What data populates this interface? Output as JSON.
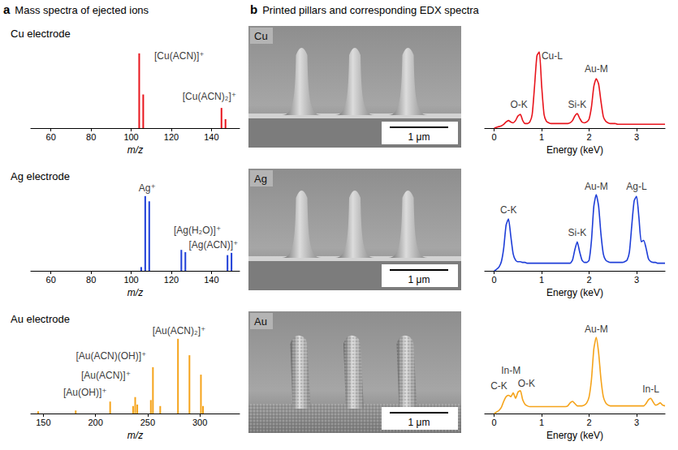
{
  "headings": [
    {
      "letter": "a",
      "title": "Mass spectra of ejected ions"
    },
    {
      "letter": "b",
      "title": "Printed pillars and corresponding EDX spectra"
    }
  ],
  "images": [
    {
      "label": "Cu",
      "scale_bar": "1 μm"
    },
    {
      "label": "Ag",
      "scale_bar": "1 μm"
    },
    {
      "label": "Au",
      "scale_bar": "1 μm"
    }
  ],
  "chart_data": [
    {
      "type": "bar",
      "title": "Cu electrode",
      "x_label": "m/z",
      "color": "#e8141c",
      "x": [
        104,
        106,
        145,
        147
      ],
      "values": [
        100,
        45,
        27,
        12
      ],
      "xlim": [
        50,
        154
      ],
      "xticks": [
        60,
        80,
        100,
        120,
        140
      ],
      "ylim": [
        0,
        115
      ],
      "tick_labels": "x",
      "grid": false,
      "annotations": [
        {
          "text": "[Cu(ACN)]⁺",
          "x": 124,
          "y": 90
        },
        {
          "text": "[Cu(ACN)₂]⁺",
          "x": 139,
          "y": 36
        }
      ]
    },
    {
      "type": "bar",
      "title": "Ag electrode",
      "x_label": "m/z",
      "color": "#1e3ed8",
      "x": [
        105,
        107,
        109,
        125,
        127,
        148,
        150
      ],
      "values": [
        5,
        100,
        93,
        28,
        25,
        21,
        24
      ],
      "xlim": [
        50,
        154
      ],
      "xticks": [
        60,
        80,
        100,
        120,
        140
      ],
      "ylim": [
        0,
        115
      ],
      "tick_labels": "x",
      "grid": false,
      "annotations": [
        {
          "text": "Ag⁺",
          "x": 108,
          "y": 104
        },
        {
          "text": "[Ag(H₂O)]⁺",
          "x": 133,
          "y": 48
        },
        {
          "text": "[Ag(ACN)]⁺",
          "x": 141,
          "y": 28
        }
      ]
    },
    {
      "type": "bar",
      "title": "Au electrode",
      "x_label": "m/z",
      "color": "#f5a31a",
      "x": [
        145,
        181,
        214,
        236,
        238,
        240,
        253,
        255,
        262,
        279,
        290,
        301,
        303
      ],
      "values": [
        3,
        4,
        16,
        10,
        22,
        12,
        18,
        62,
        10,
        100,
        78,
        52,
        10
      ],
      "xlim": [
        138,
        338
      ],
      "xticks": [
        150,
        200,
        250,
        300
      ],
      "ylim": [
        0,
        115
      ],
      "tick_labels": "x",
      "grid": false,
      "annotations": [
        {
          "text": "[Au(OH)]⁺",
          "x": 190,
          "y": 22
        },
        {
          "text": "[Au(ACN)]⁺",
          "x": 210,
          "y": 45
        },
        {
          "text": "[Au(ACN)(OH)]⁺",
          "x": 215,
          "y": 70
        },
        {
          "text": "[Au(ACN)₂]⁺",
          "x": 280,
          "y": 104
        }
      ]
    },
    {
      "type": "line",
      "x_label": "Energy (keV)",
      "color": "#e8141c",
      "x": [
        0,
        0.05,
        0.1,
        0.15,
        0.2,
        0.25,
        0.3,
        0.35,
        0.4,
        0.45,
        0.5,
        0.55,
        0.6,
        0.65,
        0.7,
        0.75,
        0.8,
        0.85,
        0.9,
        0.95,
        1,
        1.05,
        1.1,
        1.15,
        1.2,
        1.25,
        1.3,
        1.35,
        1.4,
        1.45,
        1.5,
        1.55,
        1.6,
        1.65,
        1.7,
        1.75,
        1.8,
        1.85,
        1.9,
        1.95,
        2,
        2.05,
        2.1,
        2.15,
        2.2,
        2.25,
        2.3,
        2.35,
        2.4,
        2.45,
        2.5,
        2.55,
        2.6,
        2.65,
        2.7,
        2.75,
        2.8,
        2.85,
        2.9,
        2.95,
        3,
        3.05,
        3.1,
        3.15,
        3.2,
        3.25,
        3.3,
        3.35,
        3.4,
        3.45,
        3.5,
        3.55,
        3.6
      ],
      "values": [
        0,
        1,
        2,
        3,
        5,
        8,
        10,
        8,
        7,
        10,
        16,
        18,
        10,
        6,
        6,
        8,
        18,
        55,
        95,
        100,
        55,
        18,
        9,
        7,
        6,
        6,
        6,
        6,
        6,
        6,
        6,
        6,
        7,
        10,
        16,
        19,
        13,
        8,
        7,
        8,
        12,
        28,
        55,
        65,
        58,
        35,
        15,
        9,
        7,
        6,
        6,
        6,
        5,
        5,
        5,
        5,
        5,
        5,
        5,
        5,
        5,
        5,
        5,
        5,
        5,
        5,
        5,
        5,
        5,
        5,
        5,
        5,
        5
      ],
      "xlim": [
        -0.2,
        3.6
      ],
      "xticks": [
        0,
        1,
        2,
        3
      ],
      "ylim": [
        0,
        115
      ],
      "tick_labels": "x",
      "grid": false,
      "annotations": [
        {
          "text": "O-K",
          "x": 0.52,
          "y": 24
        },
        {
          "text": "Cu-L",
          "x": 1.22,
          "y": 88
        },
        {
          "text": "Si-K",
          "x": 1.75,
          "y": 25
        },
        {
          "text": "Au-M",
          "x": 2.15,
          "y": 71
        }
      ]
    },
    {
      "type": "line",
      "x_label": "Energy (keV)",
      "color": "#1e3ed8",
      "x": [
        0,
        0.05,
        0.1,
        0.15,
        0.2,
        0.25,
        0.3,
        0.35,
        0.4,
        0.45,
        0.5,
        0.55,
        0.6,
        0.65,
        0.7,
        0.75,
        0.8,
        0.85,
        0.9,
        0.95,
        1,
        1.05,
        1.1,
        1.15,
        1.2,
        1.25,
        1.3,
        1.35,
        1.4,
        1.45,
        1.5,
        1.55,
        1.6,
        1.65,
        1.7,
        1.75,
        1.8,
        1.85,
        1.9,
        1.95,
        2,
        2.05,
        2.1,
        2.15,
        2.2,
        2.25,
        2.3,
        2.35,
        2.4,
        2.45,
        2.5,
        2.55,
        2.6,
        2.65,
        2.7,
        2.75,
        2.8,
        2.85,
        2.9,
        2.95,
        3,
        3.05,
        3.1,
        3.15,
        3.2,
        3.25,
        3.3,
        3.35,
        3.4,
        3.45,
        3.5,
        3.55,
        3.6
      ],
      "values": [
        0,
        2,
        5,
        12,
        30,
        60,
        68,
        45,
        22,
        14,
        12,
        12,
        11,
        11,
        10,
        10,
        10,
        10,
        10,
        10,
        10,
        10,
        10,
        10,
        10,
        10,
        10,
        10,
        10,
        10,
        10,
        10,
        10,
        14,
        28,
        38,
        25,
        14,
        11,
        11,
        14,
        40,
        85,
        100,
        85,
        48,
        22,
        14,
        12,
        11,
        11,
        11,
        11,
        11,
        11,
        12,
        14,
        25,
        60,
        92,
        98,
        70,
        38,
        40,
        30,
        16,
        12,
        11,
        11,
        10,
        10,
        10,
        10
      ],
      "xlim": [
        -0.2,
        3.6
      ],
      "xticks": [
        0,
        1,
        2,
        3
      ],
      "ylim": [
        0,
        115
      ],
      "tick_labels": "x",
      "grid": false,
      "annotations": [
        {
          "text": "C-K",
          "x": 0.3,
          "y": 74
        },
        {
          "text": "Si-K",
          "x": 1.75,
          "y": 44
        },
        {
          "text": "Au-M",
          "x": 2.15,
          "y": 104
        },
        {
          "text": "Ag-L",
          "x": 3.0,
          "y": 104
        }
      ]
    },
    {
      "type": "line",
      "x_label": "Energy (keV)",
      "color": "#f5a31a",
      "x": [
        0,
        0.05,
        0.1,
        0.15,
        0.2,
        0.25,
        0.3,
        0.35,
        0.4,
        0.45,
        0.5,
        0.55,
        0.6,
        0.65,
        0.7,
        0.75,
        0.8,
        0.85,
        0.9,
        0.95,
        1,
        1.05,
        1.1,
        1.15,
        1.2,
        1.25,
        1.3,
        1.35,
        1.4,
        1.45,
        1.5,
        1.55,
        1.6,
        1.65,
        1.7,
        1.75,
        1.8,
        1.85,
        1.9,
        1.95,
        2,
        2.05,
        2.1,
        2.15,
        2.2,
        2.25,
        2.3,
        2.35,
        2.4,
        2.45,
        2.5,
        2.55,
        2.6,
        2.65,
        2.7,
        2.75,
        2.8,
        2.85,
        2.9,
        2.95,
        3,
        3.05,
        3.1,
        3.15,
        3.2,
        3.25,
        3.3,
        3.35,
        3.4,
        3.45,
        3.5,
        3.55,
        3.6
      ],
      "values": [
        0,
        2,
        4,
        8,
        16,
        22,
        24,
        22,
        27,
        20,
        28,
        30,
        18,
        12,
        10,
        9,
        9,
        9,
        9,
        9,
        9,
        9,
        9,
        9,
        9,
        9,
        9,
        9,
        9,
        9,
        9,
        10,
        14,
        16,
        13,
        10,
        10,
        10,
        11,
        14,
        22,
        45,
        85,
        100,
        80,
        45,
        22,
        14,
        11,
        10,
        10,
        10,
        10,
        10,
        10,
        10,
        10,
        10,
        10,
        10,
        10,
        10,
        10,
        10,
        13,
        18,
        20,
        15,
        11,
        12,
        14,
        11,
        10
      ],
      "xlim": [
        -0.2,
        3.6
      ],
      "xticks": [
        0,
        1,
        2,
        3
      ],
      "ylim": [
        0,
        115
      ],
      "tick_labels": "x",
      "grid": false,
      "annotations": [
        {
          "text": "C-K",
          "x": 0.1,
          "y": 30
        },
        {
          "text": "In-M",
          "x": 0.35,
          "y": 50
        },
        {
          "text": "O-K",
          "x": 0.68,
          "y": 33
        },
        {
          "text": "Au-M",
          "x": 2.15,
          "y": 104
        },
        {
          "text": "In-L",
          "x": 3.3,
          "y": 26
        }
      ]
    }
  ]
}
